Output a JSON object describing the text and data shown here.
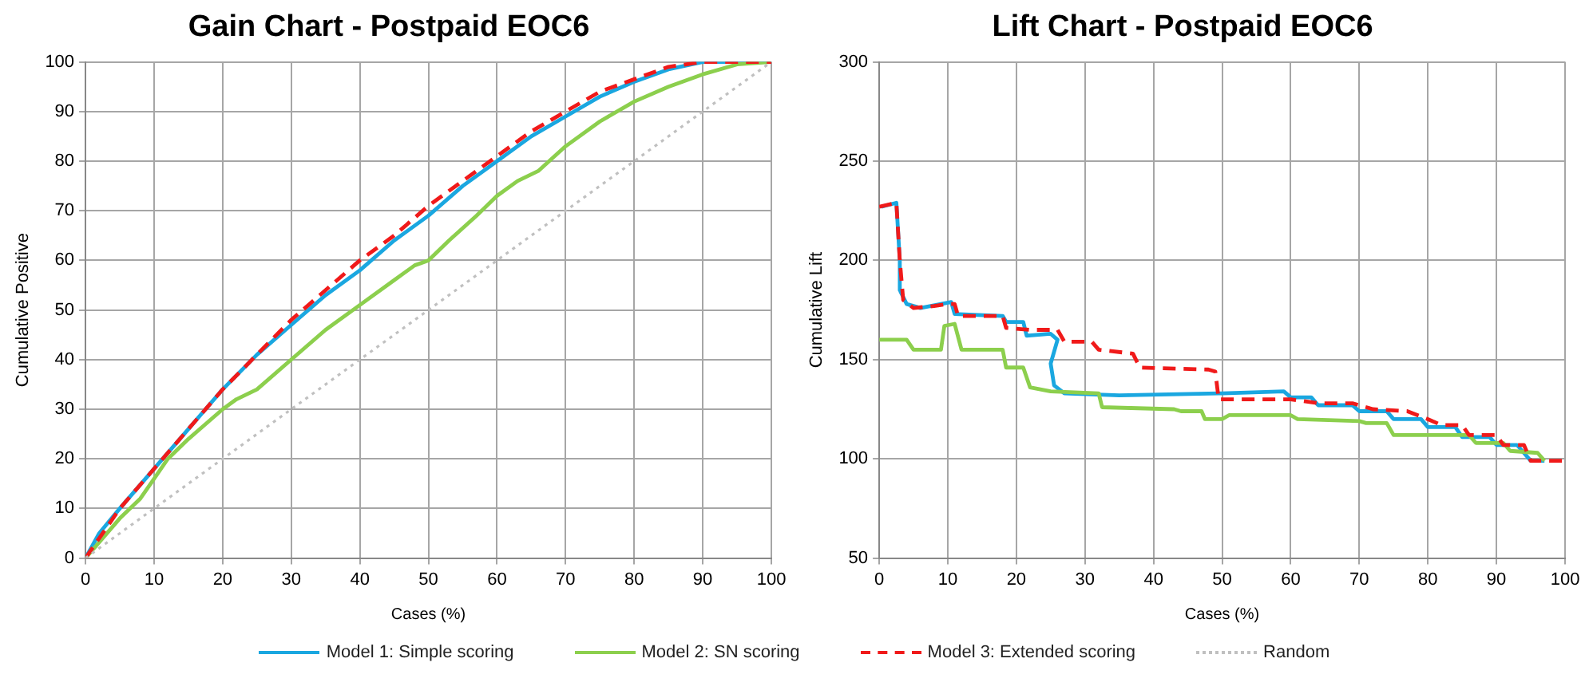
{
  "chart_data": [
    {
      "type": "line",
      "title": "Gain Chart - Postpaid EOC6",
      "xlabel": "Cases (%)",
      "ylabel": "Cumulative Positive",
      "xlim": [
        0,
        100
      ],
      "xticks": [
        0,
        10,
        20,
        30,
        40,
        50,
        60,
        70,
        80,
        90,
        100
      ],
      "ylim": [
        0,
        100
      ],
      "yticks": [
        0,
        10,
        20,
        30,
        40,
        50,
        60,
        70,
        80,
        90,
        100
      ],
      "grid": true,
      "legend": "bottom",
      "marker": "none",
      "series": [
        {
          "name": "Model 1: Simple scoring",
          "color": "#1aa7e0",
          "line_style": "solid",
          "x": [
            0,
            2,
            5,
            10,
            15,
            20,
            25,
            30,
            35,
            40,
            45,
            50,
            55,
            60,
            65,
            70,
            75,
            80,
            85,
            90,
            100
          ],
          "values": [
            0,
            5,
            10,
            18,
            26,
            34,
            41,
            47,
            53,
            58,
            64,
            69,
            75,
            80,
            85,
            89,
            93,
            96,
            98.5,
            100,
            100
          ]
        },
        {
          "name": "Model 2: SN scoring",
          "color": "#8ccf4d",
          "line_style": "solid",
          "x": [
            0,
            5,
            8,
            10,
            12,
            15,
            20,
            22,
            25,
            30,
            35,
            40,
            45,
            48,
            50,
            53,
            57,
            60,
            63,
            66,
            70,
            75,
            80,
            85,
            90,
            95,
            100
          ],
          "values": [
            0,
            8,
            12,
            16,
            20,
            24,
            30,
            32,
            34,
            40,
            46,
            51,
            56,
            59,
            60,
            64,
            69,
            73,
            76,
            78,
            83,
            88,
            92,
            95,
            97.5,
            99.5,
            100
          ]
        },
        {
          "name": "Model 3: Extended scoring",
          "color": "#f01a1a",
          "line_style": "dashed",
          "x": [
            0,
            5,
            10,
            15,
            20,
            25,
            30,
            35,
            40,
            45,
            50,
            55,
            60,
            65,
            70,
            75,
            80,
            85,
            90,
            100
          ],
          "values": [
            0,
            10,
            18,
            26,
            34,
            41,
            48,
            54,
            60,
            65,
            71,
            76,
            81,
            86,
            90,
            94,
            96.5,
            99,
            100,
            100
          ]
        },
        {
          "name": "Random",
          "color": "#c0c0c0",
          "line_style": "dotted",
          "x": [
            0,
            100
          ],
          "values": [
            0,
            100
          ]
        }
      ]
    },
    {
      "type": "line",
      "title": "Lift Chart - Postpaid EOC6",
      "xlabel": "Cases (%)",
      "ylabel": "Cumulative Lift",
      "xlim": [
        0,
        100
      ],
      "xticks": [
        0,
        10,
        20,
        30,
        40,
        50,
        60,
        70,
        80,
        90,
        100
      ],
      "ylim": [
        50,
        300
      ],
      "yticks": [
        50,
        100,
        150,
        200,
        250,
        300
      ],
      "grid": true,
      "legend": "bottom",
      "marker": "none",
      "series": [
        {
          "name": "Model 1: Simple scoring",
          "color": "#1aa7e0",
          "line_style": "solid",
          "x": [
            0.3,
            2.5,
            3,
            3,
            4,
            6,
            9,
            10.5,
            11,
            18,
            18.5,
            21,
            21.5,
            25,
            26,
            25,
            25.5,
            27,
            35,
            50,
            59,
            60,
            63,
            64,
            69,
            70,
            74,
            75,
            79,
            80,
            84,
            85,
            89,
            90,
            93,
            94,
            95,
            97
          ],
          "values": [
            227,
            229,
            200,
            185,
            178,
            176,
            178,
            179,
            173,
            172,
            169,
            169,
            162,
            163,
            160,
            148,
            137,
            133,
            132,
            133,
            134,
            131,
            131,
            127,
            127,
            124,
            124,
            120,
            120,
            116,
            116,
            111,
            111,
            107,
            107,
            103,
            99,
            99
          ]
        },
        {
          "name": "Model 2: SN scoring",
          "color": "#8ccf4d",
          "line_style": "solid",
          "x": [
            0,
            4,
            5,
            9,
            9.5,
            11,
            12,
            18,
            18.5,
            21,
            22,
            25,
            32,
            32.5,
            43,
            44,
            47,
            47.5,
            50,
            51,
            60,
            61,
            70,
            71,
            74,
            75,
            86,
            87,
            91,
            92,
            96,
            97
          ],
          "values": [
            160,
            160,
            155,
            155,
            167,
            168,
            155,
            155,
            146,
            146,
            136,
            134,
            133,
            126,
            125,
            124,
            124,
            120,
            120,
            122,
            122,
            120,
            119,
            118,
            118,
            112,
            112,
            108,
            108,
            104,
            103,
            99
          ]
        },
        {
          "name": "Model 3: Extended scoring",
          "color": "#f01a1a",
          "line_style": "dashed",
          "x": [
            0,
            2.5,
            3,
            3.5,
            5,
            8,
            10,
            11,
            11.5,
            18,
            18.5,
            22,
            26,
            27,
            31,
            32,
            37,
            38,
            48,
            49,
            49.5,
            60,
            64,
            69,
            72,
            77,
            80,
            82,
            85,
            86,
            90,
            91,
            94,
            95,
            100
          ],
          "values": [
            227,
            229,
            200,
            180,
            176,
            177,
            178,
            178,
            172,
            172,
            166,
            165,
            165,
            159,
            159,
            155,
            153,
            146,
            145,
            144,
            130,
            130,
            128,
            128,
            125,
            124,
            120,
            117,
            117,
            112,
            112,
            107,
            107,
            99,
            99
          ]
        }
      ]
    }
  ]
}
